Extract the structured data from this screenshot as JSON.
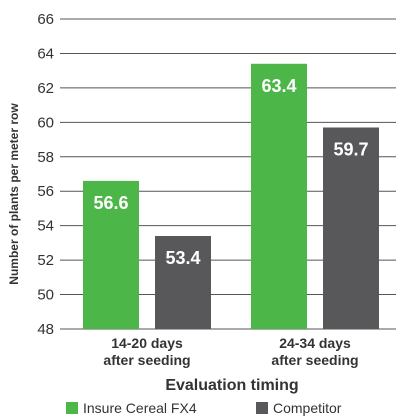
{
  "chart_data": {
    "type": "bar",
    "categories": [
      "14-20 days after seeding",
      "24-34 days after seeding"
    ],
    "category_lines": [
      [
        "14-20 days",
        "after seeding"
      ],
      [
        "24-34 days",
        "after seeding"
      ]
    ],
    "series": [
      {
        "name": "Insure Cereal FX4",
        "values": [
          56.6,
          63.4
        ],
        "color": "#4cb648"
      },
      {
        "name": "Competitor",
        "values": [
          53.4,
          59.7
        ],
        "color": "#58585a"
      }
    ],
    "value_labels": [
      [
        "56.6",
        "63.4"
      ],
      [
        "53.4",
        "59.7"
      ]
    ],
    "xlabel": "Evaluation timing",
    "ylabel": "Number of plants per meter row",
    "ylim": [
      48,
      66
    ],
    "yticks": [
      48,
      50,
      52,
      54,
      56,
      58,
      60,
      62,
      64,
      66
    ],
    "grid": true,
    "legend_position": "bottom",
    "gridline_color": "#555555"
  }
}
